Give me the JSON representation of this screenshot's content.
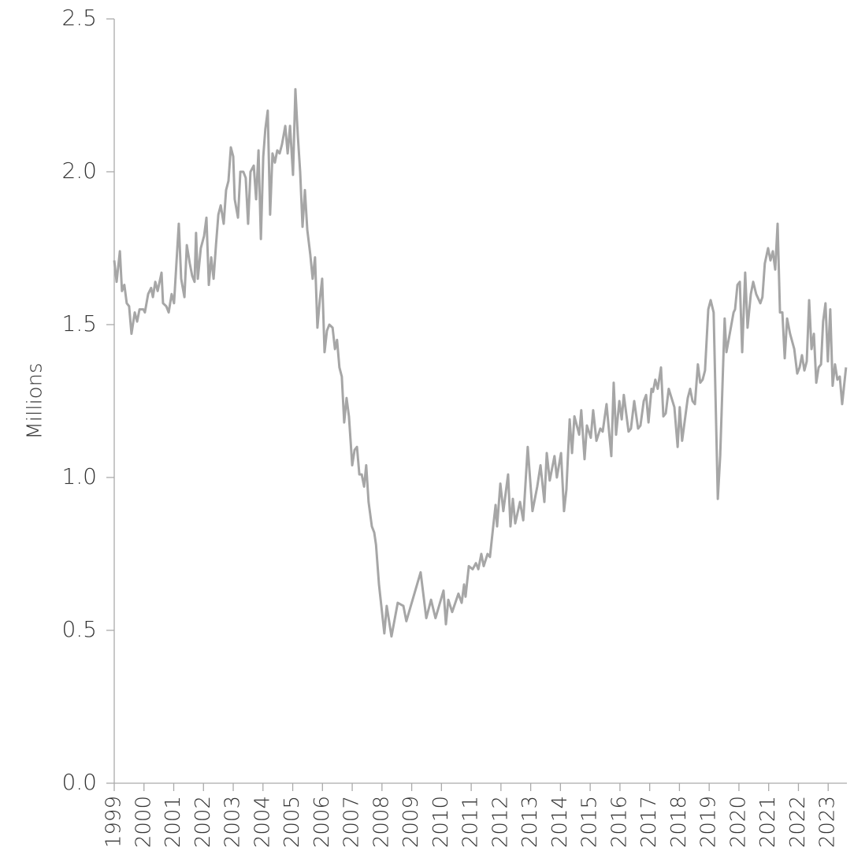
{
  "chart_data": {
    "type": "line",
    "y_label": "Millions",
    "color": "#a6a6a6",
    "x": [
      1999,
      1999.08,
      1999.19,
      1999.26,
      1999.34,
      1999.42,
      1999.5,
      1999.58,
      1999.69,
      1999.77,
      1999.85,
      1999.98,
      2000.03,
      2000.14,
      2000.24,
      2000.3,
      2000.38,
      2000.46,
      2000.59,
      2000.64,
      2000.75,
      2000.83,
      2000.93,
      2001.01,
      2001.17,
      2001.25,
      2001.36,
      2001.44,
      2001.54,
      2001.62,
      2001.7,
      2001.75,
      2001.81,
      2001.91,
      2002.02,
      2002.1,
      2002.18,
      2002.26,
      2002.34,
      2002.42,
      2002.5,
      2002.58,
      2002.68,
      2002.76,
      2002.84,
      2002.92,
      2003,
      2003.05,
      2003.16,
      2003.24,
      2003.34,
      2003.42,
      2003.5,
      2003.58,
      2003.69,
      2003.77,
      2003.85,
      2003.93,
      2004.01,
      2004.08,
      2004.16,
      2004.24,
      2004.32,
      2004.4,
      2004.48,
      2004.56,
      2004.64,
      2004.75,
      2004.83,
      2004.91,
      2005.01,
      2005.09,
      2005.17,
      2005.25,
      2005.33,
      2005.41,
      2005.49,
      2005.59,
      2005.67,
      2005.75,
      2005.83,
      2005.91,
      2005.99,
      2006.07,
      2006.15,
      2006.23,
      2006.34,
      2006.42,
      2006.49,
      2006.57,
      2006.65,
      2006.73,
      2006.81,
      2006.89,
      2007,
      2007.08,
      2007.16,
      2007.24,
      2007.32,
      2007.4,
      2007.47,
      2007.55,
      2007.66,
      2007.74,
      2007.8,
      2007.9,
      2008.08,
      2008.16,
      2008.32,
      2008.53,
      2008.72,
      2008.82,
      2009.09,
      2009.3,
      2009.49,
      2009.65,
      2009.8,
      2010.07,
      2010.15,
      2010.23,
      2010.36,
      2010.57,
      2010.68,
      2010.76,
      2010.81,
      2010.92,
      2011.05,
      2011.16,
      2011.24,
      2011.34,
      2011.42,
      2011.55,
      2011.63,
      2011.74,
      2011.82,
      2011.87,
      2011.98,
      2012.08,
      2012.24,
      2012.32,
      2012.4,
      2012.48,
      2012.64,
      2012.75,
      2012.9,
      2013.06,
      2013.22,
      2013.33,
      2013.46,
      2013.54,
      2013.64,
      2013.8,
      2013.88,
      2014.02,
      2014.12,
      2014.2,
      2014.31,
      2014.39,
      2014.47,
      2014.63,
      2014.7,
      2014.81,
      2014.89,
      2015.02,
      2015.1,
      2015.21,
      2015.34,
      2015.42,
      2015.55,
      2015.71,
      2015.79,
      2015.87,
      2015.98,
      2016.06,
      2016.13,
      2016.29,
      2016.37,
      2016.48,
      2016.61,
      2016.69,
      2016.8,
      2016.88,
      2016.96,
      2017.06,
      2017.11,
      2017.19,
      2017.27,
      2017.38,
      2017.46,
      2017.54,
      2017.64,
      2017.83,
      2017.94,
      2018.01,
      2018.09,
      2018.28,
      2018.36,
      2018.44,
      2018.52,
      2018.62,
      2018.7,
      2018.78,
      2018.86,
      2018.97,
      2019.05,
      2019.15,
      2019.29,
      2019.37,
      2019.52,
      2019.58,
      2019.82,
      2019.87,
      2019.95,
      2020.03,
      2020.11,
      2020.21,
      2020.29,
      2020.4,
      2020.48,
      2020.58,
      2020.72,
      2020.79,
      2020.87,
      2020.98,
      2021.06,
      2021.14,
      2021.22,
      2021.3,
      2021.38,
      2021.46,
      2021.54,
      2021.62,
      2021.72,
      2021.86,
      2021.96,
      2022.04,
      2022.12,
      2022.2,
      2022.28,
      2022.36,
      2022.44,
      2022.52,
      2022.6,
      2022.68,
      2022.76,
      2022.83,
      2022.91,
      2022.99,
      2023.07,
      2023.15,
      2023.23,
      2023.31,
      2023.39,
      2023.47,
      2023.6
    ],
    "values": [
      1.71,
      1.64,
      1.74,
      1.61,
      1.63,
      1.57,
      1.56,
      1.47,
      1.54,
      1.51,
      1.55,
      1.55,
      1.54,
      1.6,
      1.62,
      1.59,
      1.64,
      1.61,
      1.67,
      1.57,
      1.56,
      1.54,
      1.6,
      1.57,
      1.83,
      1.65,
      1.59,
      1.76,
      1.7,
      1.66,
      1.64,
      1.8,
      1.65,
      1.75,
      1.79,
      1.85,
      1.63,
      1.72,
      1.65,
      1.76,
      1.86,
      1.89,
      1.83,
      1.94,
      1.97,
      2.08,
      2.05,
      1.91,
      1.85,
      2,
      2,
      1.98,
      1.83,
      2,
      2.02,
      1.91,
      2.07,
      1.78,
      2.05,
      2.14,
      2.2,
      1.86,
      2.06,
      2.03,
      2.07,
      2.06,
      2.09,
      2.15,
      2.06,
      2.15,
      1.99,
      2.27,
      2.12,
      2,
      1.82,
      1.94,
      1.81,
      1.73,
      1.65,
      1.72,
      1.49,
      1.58,
      1.65,
      1.41,
      1.48,
      1.5,
      1.49,
      1.42,
      1.45,
      1.36,
      1.33,
      1.18,
      1.26,
      1.2,
      1.04,
      1.09,
      1.1,
      1.01,
      1.01,
      0.97,
      1.04,
      0.92,
      0.84,
      0.82,
      0.78,
      0.65,
      0.49,
      0.58,
      0.48,
      0.59,
      0.58,
      0.53,
      0.62,
      0.69,
      0.54,
      0.6,
      0.54,
      0.63,
      0.52,
      0.6,
      0.56,
      0.62,
      0.59,
      0.65,
      0.61,
      0.71,
      0.7,
      0.72,
      0.7,
      0.75,
      0.71,
      0.75,
      0.74,
      0.84,
      0.91,
      0.84,
      0.98,
      0.89,
      1.01,
      0.84,
      0.93,
      0.85,
      0.92,
      0.86,
      1.1,
      0.89,
      0.97,
      1.04,
      0.92,
      1.08,
      0.99,
      1.07,
      1,
      1.08,
      0.89,
      0.96,
      1.19,
      1.08,
      1.2,
      1.14,
      1.22,
      1.06,
      1.17,
      1.13,
      1.22,
      1.12,
      1.16,
      1.15,
      1.24,
      1.07,
      1.31,
      1.14,
      1.25,
      1.19,
      1.27,
      1.15,
      1.16,
      1.25,
      1.16,
      1.17,
      1.25,
      1.27,
      1.18,
      1.29,
      1.28,
      1.32,
      1.29,
      1.36,
      1.2,
      1.21,
      1.29,
      1.23,
      1.1,
      1.23,
      1.12,
      1.26,
      1.29,
      1.25,
      1.24,
      1.37,
      1.31,
      1.32,
      1.35,
      1.55,
      1.58,
      1.54,
      0.93,
      1.07,
      1.52,
      1.41,
      1.54,
      1.55,
      1.63,
      1.64,
      1.41,
      1.67,
      1.49,
      1.6,
      1.64,
      1.6,
      1.57,
      1.59,
      1.7,
      1.75,
      1.71,
      1.74,
      1.68,
      1.83,
      1.54,
      1.54,
      1.39,
      1.52,
      1.47,
      1.42,
      1.34,
      1.36,
      1.4,
      1.35,
      1.38,
      1.58,
      1.42,
      1.47,
      1.31,
      1.36,
      1.37,
      1.51,
      1.57,
      1.38,
      1.55,
      1.3,
      1.37,
      1.32,
      1.33,
      1.24,
      1.36
    ],
    "xlim": [
      1999,
      2023.63
    ],
    "xticks": [
      1999,
      2000,
      2001,
      2002,
      2003,
      2004,
      2005,
      2006,
      2007,
      2008,
      2009,
      2010,
      2011,
      2012,
      2013,
      2014,
      2015,
      2016,
      2017,
      2018,
      2019,
      2020,
      2021,
      2022,
      2023
    ],
    "ylim": [
      0,
      2.5
    ],
    "yticks": [
      {
        "value": 0,
        "label": "0.0"
      },
      0.5,
      {
        "value": 1,
        "label": "1.0"
      },
      1.5,
      {
        "value": 2,
        "label": "2.0"
      },
      2.5
    ]
  }
}
